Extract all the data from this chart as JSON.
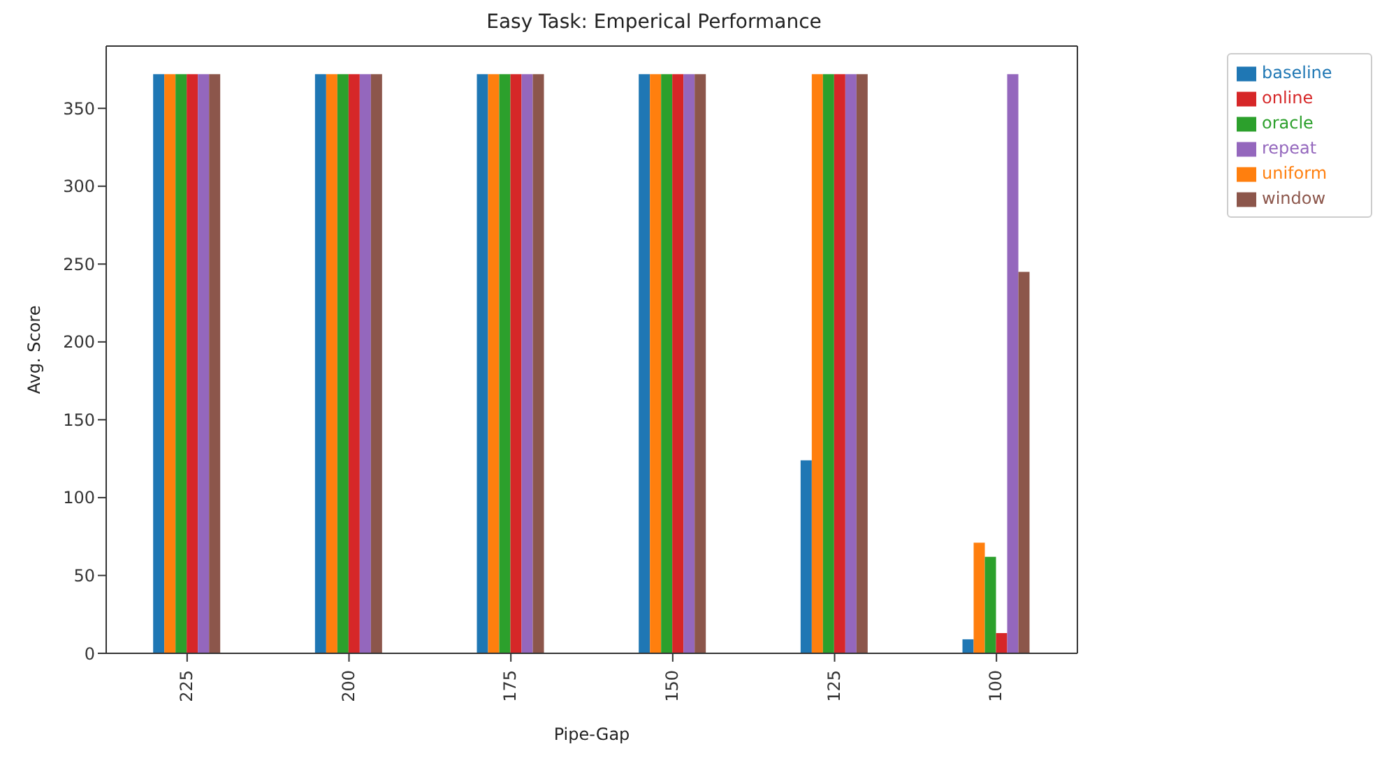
{
  "chart_data": {
    "type": "bar",
    "title": "Easy Task: Emperical Performance",
    "xlabel": "Pipe-Gap",
    "ylabel": "Avg. Score",
    "categories": [
      "225",
      "200",
      "175",
      "150",
      "125",
      "100"
    ],
    "series": [
      {
        "name": "baseline",
        "color": "#1f77b4",
        "values": [
          372,
          372,
          372,
          372,
          124,
          9
        ]
      },
      {
        "name": "uniform",
        "color": "#ff7f0e",
        "values": [
          372,
          372,
          372,
          372,
          372,
          71
        ]
      },
      {
        "name": "oracle",
        "color": "#2ca02c",
        "values": [
          372,
          372,
          372,
          372,
          372,
          62
        ]
      },
      {
        "name": "online",
        "color": "#d62728",
        "values": [
          372,
          372,
          372,
          372,
          372,
          13
        ]
      },
      {
        "name": "repeat",
        "color": "#9467bd",
        "values": [
          372,
          372,
          372,
          372,
          372,
          372
        ]
      },
      {
        "name": "window",
        "color": "#8c564b",
        "values": [
          372,
          372,
          372,
          372,
          372,
          245
        ]
      }
    ],
    "ylim": [
      0,
      390
    ],
    "yticks": [
      0,
      50,
      100,
      150,
      200,
      250,
      300,
      350
    ],
    "grid": false,
    "legend": "top right"
  }
}
